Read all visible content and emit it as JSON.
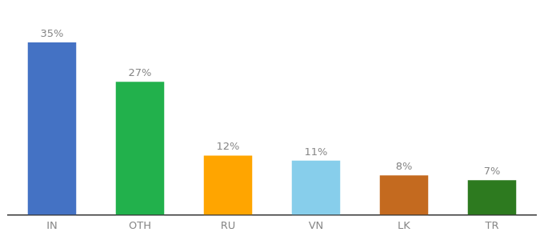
{
  "chart_data": {
    "type": "bar",
    "categories": [
      "IN",
      "OTH",
      "RU",
      "VN",
      "LK",
      "TR"
    ],
    "values": [
      35,
      27,
      12,
      11,
      8,
      7
    ],
    "value_labels": [
      "35%",
      "27%",
      "12%",
      "11%",
      "8%",
      "7%"
    ],
    "colors": [
      "#4472C4",
      "#22B14C",
      "#FFA500",
      "#87CEEB",
      "#C46A1F",
      "#2D7A1F"
    ],
    "ylim": [
      0,
      42
    ],
    "grid": false,
    "data_labels": true,
    "tick_labels": "x"
  }
}
